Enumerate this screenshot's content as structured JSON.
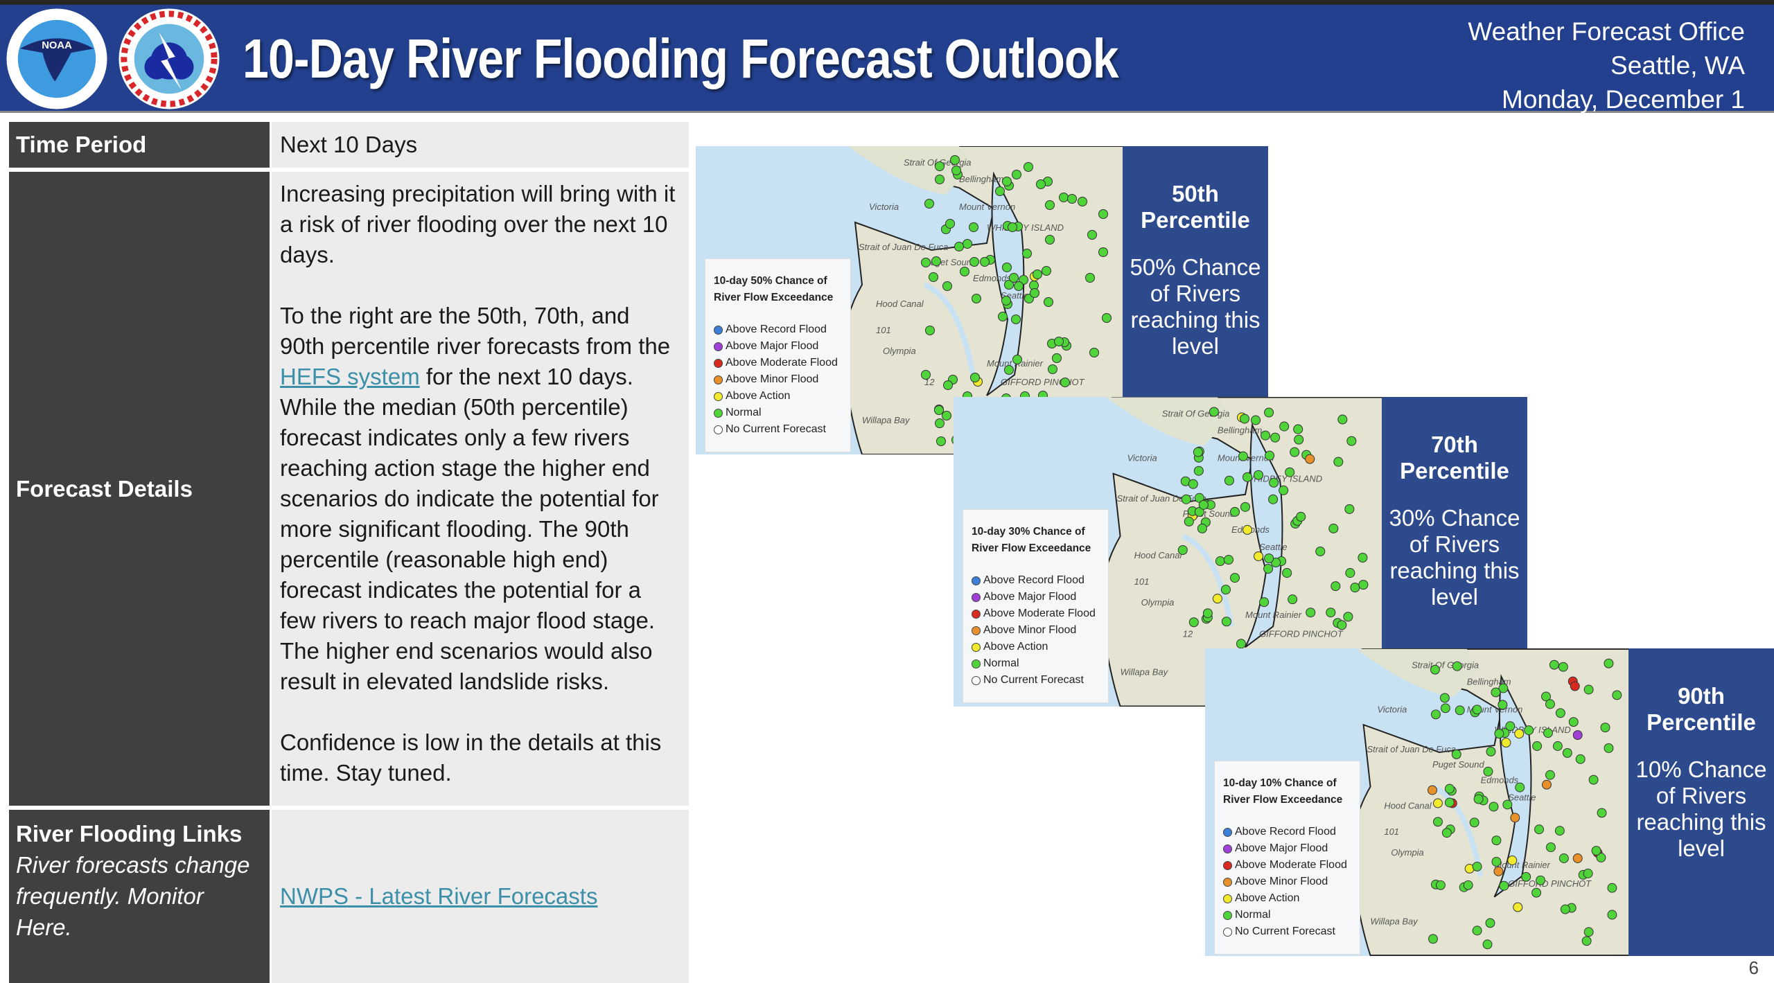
{
  "header": {
    "title": "10-Day River Flooding Forecast Outlook",
    "office": [
      "Weather Forecast Office",
      "Seattle, WA",
      "Monday, December 1"
    ],
    "logos": {
      "noaa": "NOAA",
      "nws": "NATIONAL WEATHER SERVICE"
    },
    "colors": {
      "banner": "#22408e"
    }
  },
  "table": {
    "time_period": {
      "label": "Time Period",
      "value": "Next 10 Days"
    },
    "forecast_details": {
      "label": "Forecast Details",
      "p1": "Increasing precipitation will bring with it a risk of river flooding over the next 10 days.",
      "p2_before": "To the right are the 50th, 70th, and 90th percentile river forecasts from the ",
      "p2_link": "HEFS system",
      "p2_after": " for the next 10 days. While the median (50th percentile) forecast indicates only a few rivers reaching action stage the higher end scenarios do indicate the potential for more significant flooding. The 90th percentile (reasonable high end) forecast indicates the potential for a few rivers to reach major flood stage. The higher end scenarios would also result in elevated landslide risks.",
      "p3": "Confidence is low in the details at this time. Stay tuned."
    },
    "links": {
      "label": "River Flooding Links",
      "note": "River forecasts change frequently. Monitor Here.",
      "link": "NWPS - Latest River Forecasts"
    }
  },
  "legend_items": [
    {
      "label": "Above Record Flood",
      "color": "#3b7fd9"
    },
    {
      "label": "Above Major Flood",
      "color": "#a040d8"
    },
    {
      "label": "Above Moderate Flood",
      "color": "#d82a1e"
    },
    {
      "label": "Above Minor Flood",
      "color": "#e8902a"
    },
    {
      "label": "Above Action",
      "color": "#f2ea2c"
    },
    {
      "label": "Normal",
      "color": "#4fd43a"
    },
    {
      "label": "No Current Forecast",
      "color": "#ffffff"
    }
  ],
  "map_labels": [
    "Strait Of Georgia",
    "Bellingham",
    "Victoria",
    "Mount Vernon",
    "WHIDBEY ISLAND",
    "Strait of Juan De Fuca",
    "Puget Sound",
    "Edmonds",
    "Seattle",
    "Hood Canal",
    "Olympia",
    "Mount Rainier",
    "Willapa Bay",
    "GIFFORD PINCHOT",
    "101",
    "12"
  ],
  "maps": [
    {
      "legend_title_1": "10-day 50% Chance of",
      "legend_title_2": "River Flow Exceedance",
      "percentile": "50th Percentile",
      "chance": "50% Chance of Rivers reaching this level"
    },
    {
      "legend_title_1": "10-day 30% Chance of",
      "legend_title_2": "River Flow Exceedance",
      "percentile": "70th Percentile",
      "chance": "30% Chance of Rivers reaching this level"
    },
    {
      "legend_title_1": "10-day 10% Chance of",
      "legend_title_2": "River Flow Exceedance",
      "percentile": "90th Percentile",
      "chance": "10% Chance of Rivers reaching this level"
    }
  ],
  "page_number": "6"
}
